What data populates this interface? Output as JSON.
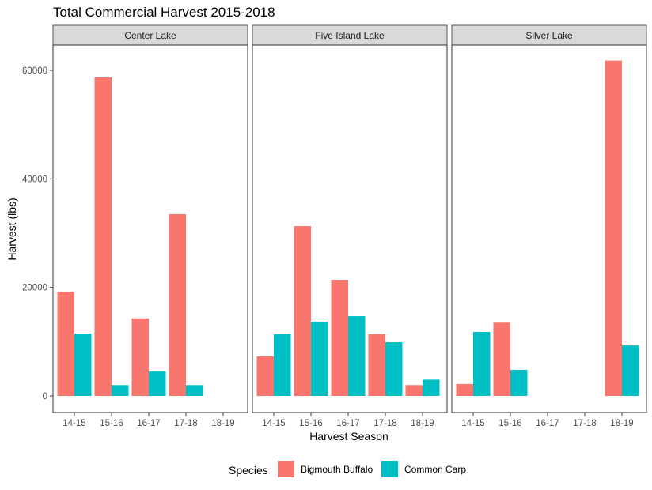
{
  "chart_data": {
    "type": "bar",
    "title": "Total Commercial Harvest 2015-2018",
    "xlabel": "Harvest Season",
    "ylabel": "Harvest (lbs)",
    "categories": [
      "14-15",
      "15-16",
      "16-17",
      "17-18",
      "18-19"
    ],
    "ylim": [
      0,
      65000
    ],
    "yticks": [
      "0",
      "20000",
      "40000",
      "60000"
    ],
    "ytick_values": [
      0,
      20000,
      40000,
      60000
    ],
    "grid": false,
    "legend": {
      "title": "Species",
      "position": "bottom",
      "items": [
        {
          "name": "Bigmouth Buffalo",
          "color": "#F8766D"
        },
        {
          "name": "Common Carp",
          "color": "#00BFC4"
        }
      ]
    },
    "panels": [
      {
        "name": "Center Lake",
        "series": [
          {
            "name": "Bigmouth Buffalo",
            "values": [
              19200,
              58700,
              14300,
              33500,
              null
            ]
          },
          {
            "name": "Common Carp",
            "values": [
              11500,
              2000,
              4500,
              2000,
              null
            ]
          }
        ]
      },
      {
        "name": "Five Island Lake",
        "series": [
          {
            "name": "Bigmouth Buffalo",
            "values": [
              7300,
              31300,
              21400,
              11400,
              2000
            ]
          },
          {
            "name": "Common Carp",
            "values": [
              11400,
              13700,
              14700,
              9900,
              3000
            ]
          }
        ]
      },
      {
        "name": "Silver Lake",
        "series": [
          {
            "name": "Bigmouth Buffalo",
            "values": [
              2200,
              13500,
              null,
              null,
              61800
            ]
          },
          {
            "name": "Common Carp",
            "values": [
              11800,
              4800,
              null,
              null,
              9300
            ]
          }
        ]
      }
    ]
  }
}
